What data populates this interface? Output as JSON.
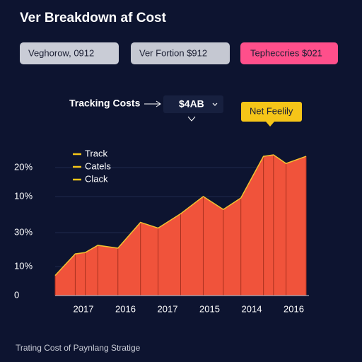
{
  "header": {
    "title": "Ver Breakdown af Cost"
  },
  "filters": [
    "Veghorow, 0912",
    "Ver Fortion $912",
    "Tepheccries $021"
  ],
  "tracking": {
    "label": "Tracking Costs",
    "value": "$4AB"
  },
  "chart_data": {
    "type": "area",
    "callout": "Net Feelily",
    "legend_labels": [
      "Track",
      "Catels",
      "Clack"
    ],
    "y_axis_labels": [
      "20%",
      "10%",
      "30%",
      "10%",
      "0"
    ],
    "x_axis_labels": [
      "2017",
      "2016",
      "2017",
      "2015",
      "2014",
      "2016"
    ],
    "x": [
      0,
      8,
      12,
      17,
      25,
      34,
      41,
      50,
      59,
      67,
      74,
      83,
      87,
      92,
      100
    ],
    "values": [
      14,
      29,
      30,
      35,
      33,
      51,
      47,
      57,
      69,
      60,
      68,
      97,
      98,
      92,
      97
    ],
    "xlim": [
      0,
      100
    ],
    "ylim": [
      0,
      100
    ],
    "color": "#f0533b",
    "line_color": "#f2c230"
  },
  "footer": "Trating Cost of Paynlang Stratige"
}
